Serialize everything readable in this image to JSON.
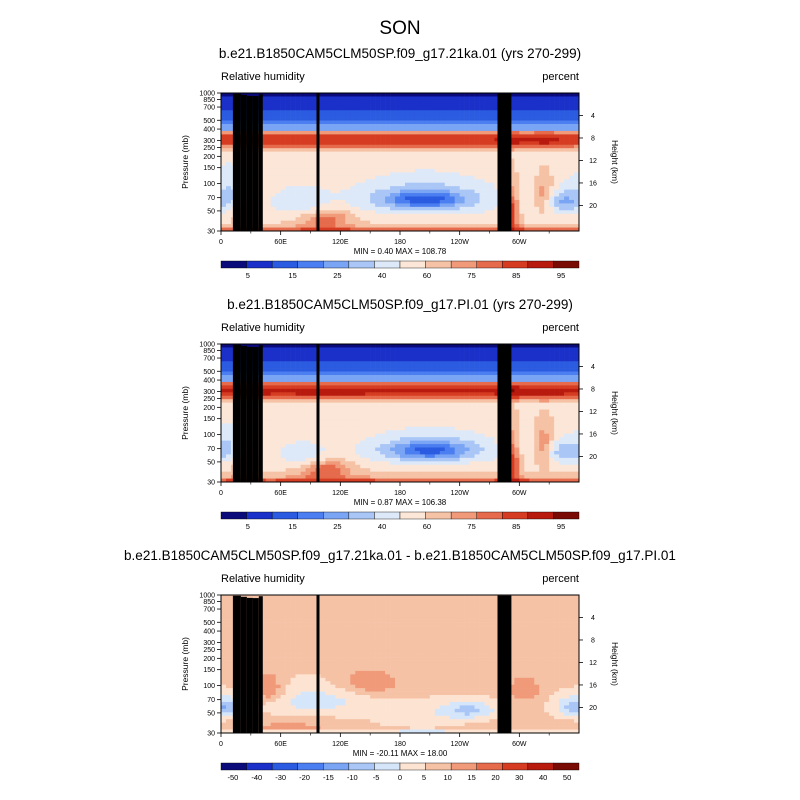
{
  "page_title": "SON",
  "colors": {
    "abs": [
      "#0a0a7a",
      "#1a30c8",
      "#2b5be0",
      "#4b7ef0",
      "#7aa4f4",
      "#a9c6f6",
      "#dde9f8",
      "#fbe6d8",
      "#f6c2a6",
      "#f09a7a",
      "#e66a4c",
      "#d63c22",
      "#b81a0e",
      "#7a0a04"
    ],
    "diff": [
      "#0a0a7a",
      "#1a30c8",
      "#2b5be0",
      "#4b7ef0",
      "#7aa4f4",
      "#a9c6f6",
      "#d6e6fa",
      "#fde4d2",
      "#f6c2a6",
      "#f09a7a",
      "#e66a4c",
      "#d63c22",
      "#b81a0e",
      "#7a0a04"
    ],
    "topography": "#000000"
  },
  "chart_data": [
    {
      "type": "heatmap",
      "title": "b.e21.B1850CAM5CLM50SP.f09_g17.21ka.01 (yrs 270-299)",
      "left_label": "Relative humidity",
      "right_label": "percent",
      "ylabel": "Pressure (mb)",
      "ylabel_right": "Height (km)",
      "xlabel": "",
      "x_ticks": [
        {
          "lon": 0,
          "label": "0"
        },
        {
          "lon": 60,
          "label": "60E"
        },
        {
          "lon": 120,
          "label": "120E"
        },
        {
          "lon": 180,
          "label": "180"
        },
        {
          "lon": 240,
          "label": "120W"
        },
        {
          "lon": 300,
          "label": "60W"
        }
      ],
      "y_ticks": [
        {
          "p": 1000,
          "label": "1000"
        },
        {
          "p": 850,
          "label": "850"
        },
        {
          "p": 700,
          "label": "700"
        },
        {
          "p": 500,
          "label": "500"
        },
        {
          "p": 400,
          "label": "400"
        },
        {
          "p": 300,
          "label": "300"
        },
        {
          "p": 250,
          "label": "250"
        },
        {
          "p": 200,
          "label": "200"
        },
        {
          "p": 150,
          "label": "150"
        },
        {
          "p": 100,
          "label": "100"
        },
        {
          "p": 70,
          "label": "70"
        },
        {
          "p": 50,
          "label": "50"
        },
        {
          "p": 30,
          "label": "30"
        }
      ],
      "height_ticks": [
        {
          "km": 4,
          "label": "4"
        },
        {
          "km": 8,
          "label": "8"
        },
        {
          "km": 12,
          "label": "12"
        },
        {
          "km": 16,
          "label": "16"
        },
        {
          "km": 20,
          "label": "20"
        }
      ],
      "xlim": [
        0,
        360
      ],
      "plim": [
        1000,
        30
      ],
      "min_max_text": "MIN =   0.40  MAX = 108.78",
      "colorbar_labels": [
        "5",
        "15",
        "25",
        "40",
        "60",
        "75",
        "85",
        "95"
      ],
      "palette": "abs",
      "features": {
        "mid_min": 19,
        "mid_min_lon": 205,
        "base_mid": 62
      }
    },
    {
      "type": "heatmap",
      "title": "b.e21.B1850CAM5CLM50SP.f09_g17.PI.01 (yrs 270-299)",
      "left_label": "Relative humidity",
      "right_label": "percent",
      "ylabel": "Pressure (mb)",
      "ylabel_right": "Height (km)",
      "xlabel": "",
      "x_ticks": [
        {
          "lon": 0,
          "label": "0"
        },
        {
          "lon": 60,
          "label": "60E"
        },
        {
          "lon": 120,
          "label": "120E"
        },
        {
          "lon": 180,
          "label": "180"
        },
        {
          "lon": 240,
          "label": "120W"
        },
        {
          "lon": 300,
          "label": "60W"
        }
      ],
      "y_ticks": [
        {
          "p": 1000,
          "label": "1000"
        },
        {
          "p": 850,
          "label": "850"
        },
        {
          "p": 700,
          "label": "700"
        },
        {
          "p": 500,
          "label": "500"
        },
        {
          "p": 400,
          "label": "400"
        },
        {
          "p": 300,
          "label": "300"
        },
        {
          "p": 250,
          "label": "250"
        },
        {
          "p": 200,
          "label": "200"
        },
        {
          "p": 150,
          "label": "150"
        },
        {
          "p": 100,
          "label": "100"
        },
        {
          "p": 70,
          "label": "70"
        },
        {
          "p": 50,
          "label": "50"
        },
        {
          "p": 30,
          "label": "30"
        }
      ],
      "height_ticks": [
        {
          "km": 4,
          "label": "4"
        },
        {
          "km": 8,
          "label": "8"
        },
        {
          "km": 12,
          "label": "12"
        },
        {
          "km": 16,
          "label": "16"
        },
        {
          "km": 20,
          "label": "20"
        }
      ],
      "xlim": [
        0,
        360
      ],
      "plim": [
        1000,
        30
      ],
      "min_max_text": "MIN =   0.87  MAX = 106.38",
      "colorbar_labels": [
        "5",
        "15",
        "25",
        "40",
        "60",
        "75",
        "85",
        "95"
      ],
      "palette": "abs",
      "features": {
        "mid_min": 22,
        "mid_min_lon": 210,
        "base_mid": 64
      }
    },
    {
      "type": "heatmap",
      "title": "b.e21.B1850CAM5CLM50SP.f09_g17.21ka.01 - b.e21.B1850CAM5CLM50SP.f09_g17.PI.01",
      "left_label": "Relative humidity",
      "right_label": "percent",
      "ylabel": "Pressure (mb)",
      "ylabel_right": "Height (km)",
      "xlabel": "",
      "x_ticks": [
        {
          "lon": 0,
          "label": "0"
        },
        {
          "lon": 60,
          "label": "60E"
        },
        {
          "lon": 120,
          "label": "120E"
        },
        {
          "lon": 180,
          "label": "180"
        },
        {
          "lon": 240,
          "label": "120W"
        },
        {
          "lon": 300,
          "label": "60W"
        }
      ],
      "y_ticks": [
        {
          "p": 1000,
          "label": "1000"
        },
        {
          "p": 850,
          "label": "850"
        },
        {
          "p": 700,
          "label": "700"
        },
        {
          "p": 500,
          "label": "500"
        },
        {
          "p": 400,
          "label": "400"
        },
        {
          "p": 300,
          "label": "300"
        },
        {
          "p": 250,
          "label": "250"
        },
        {
          "p": 200,
          "label": "200"
        },
        {
          "p": 150,
          "label": "150"
        },
        {
          "p": 100,
          "label": "100"
        },
        {
          "p": 70,
          "label": "70"
        },
        {
          "p": 50,
          "label": "50"
        },
        {
          "p": 30,
          "label": "30"
        }
      ],
      "height_ticks": [
        {
          "km": 4,
          "label": "4"
        },
        {
          "km": 8,
          "label": "8"
        },
        {
          "km": 12,
          "label": "12"
        },
        {
          "km": 16,
          "label": "16"
        },
        {
          "km": 20,
          "label": "20"
        }
      ],
      "xlim": [
        0,
        360
      ],
      "plim": [
        1000,
        30
      ],
      "min_max_text": "MIN = -20.11  MAX =  18.00",
      "colorbar_labels": [
        "-50",
        "-40",
        "-30",
        "-20",
        "-15",
        "-10",
        "-5",
        "0",
        "5",
        "10",
        "15",
        "20",
        "30",
        "40",
        "50"
      ],
      "palette": "diff",
      "features": {
        "diff": true
      }
    }
  ]
}
